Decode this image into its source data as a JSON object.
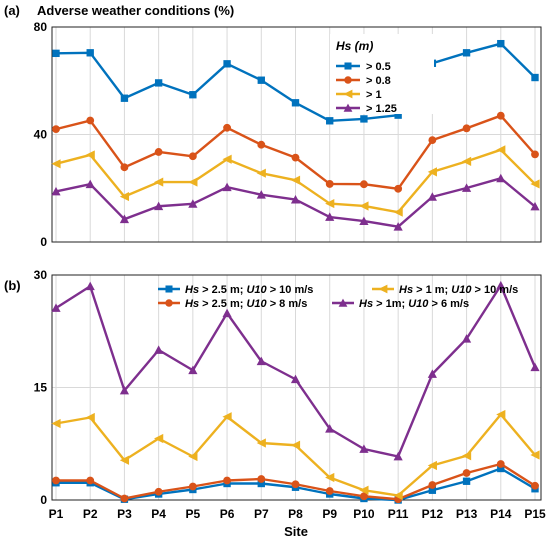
{
  "chart_data": [
    {
      "type": "line",
      "panel_label": "(a)",
      "title": "Adverse weather conditions (%)",
      "x": [
        "P1",
        "P2",
        "P3",
        "P4",
        "P5",
        "P6",
        "P7",
        "P8",
        "P9",
        "P10",
        "P11",
        "P12",
        "P13",
        "P14",
        "P15"
      ],
      "ylim": [
        0,
        80
      ],
      "yticks": [
        "0",
        "40",
        "80"
      ],
      "grid": true,
      "legend_title": "Hs (m)",
      "legend_position": "top-right",
      "series": [
        {
          "name": "> 0.5",
          "color": "#0072BD",
          "marker": "square",
          "values": [
            70.2,
            70.4,
            53.5,
            59.2,
            54.8,
            66.3,
            60.2,
            51.8,
            45.1,
            45.8,
            47.2,
            66.5,
            70.4,
            73.8,
            61.2
          ]
        },
        {
          "name": "> 0.8",
          "color": "#D95319",
          "marker": "circle",
          "values": [
            42.0,
            45.2,
            27.8,
            33.5,
            31.9,
            42.5,
            36.2,
            31.4,
            21.6,
            21.5,
            19.8,
            37.9,
            42.3,
            47.0,
            32.6
          ]
        },
        {
          "name": "> 1",
          "color": "#EDB120",
          "marker": "triangle-left",
          "values": [
            29.1,
            32.4,
            16.9,
            22.3,
            22.3,
            30.8,
            25.6,
            23.0,
            14.3,
            13.4,
            11.1,
            26.1,
            30.0,
            34.3,
            21.6
          ]
        },
        {
          "name": "> 1.25",
          "color": "#7E2F8E",
          "marker": "triangle-up",
          "values": [
            18.8,
            21.5,
            8.5,
            13.3,
            14.2,
            20.4,
            17.6,
            15.8,
            9.3,
            7.8,
            5.7,
            16.8,
            20.1,
            23.7,
            13.2
          ]
        }
      ]
    },
    {
      "type": "line",
      "panel_label": "(b)",
      "xlabel": "Site",
      "x": [
        "P1",
        "P2",
        "P3",
        "P4",
        "P5",
        "P6",
        "P7",
        "P8",
        "P9",
        "P10",
        "P11",
        "P12",
        "P13",
        "P14",
        "P15"
      ],
      "ylim": [
        0,
        30
      ],
      "yticks": [
        "0",
        "15",
        "30"
      ],
      "grid": true,
      "legend_position": "top",
      "series": [
        {
          "name": "Hs > 2.5 m; U10 > 10 m/s",
          "name_parts": {
            "a": "Hs",
            "b": " > 2.5 m; ",
            "c": "U10",
            "d": " > 10 m/s"
          },
          "color": "#0072BD",
          "marker": "square",
          "values": [
            2.3,
            2.3,
            0.1,
            0.8,
            1.4,
            2.2,
            2.2,
            1.7,
            0.8,
            0.2,
            0.0,
            1.3,
            2.5,
            4.2,
            1.5
          ]
        },
        {
          "name": "Hs > 2.5 m; U10 > 8 m/s",
          "name_parts": {
            "a": "Hs",
            "b": " > 2.5 m; ",
            "c": "U10",
            "d": " > 8 m/s"
          },
          "color": "#D95319",
          "marker": "circle",
          "values": [
            2.6,
            2.6,
            0.2,
            1.1,
            1.8,
            2.6,
            2.8,
            2.1,
            1.2,
            0.5,
            0.1,
            2.0,
            3.6,
            4.8,
            1.9
          ]
        },
        {
          "name": "Hs > 1 m; U10 > 10 m/s",
          "name_parts": {
            "a": "Hs",
            "b": " > 1 m; ",
            "c": "U10",
            "d": " > 10 m/s"
          },
          "color": "#EDB120",
          "marker": "triangle-left",
          "values": [
            10.2,
            11.0,
            5.3,
            8.2,
            5.8,
            11.1,
            7.6,
            7.3,
            3.0,
            1.3,
            0.6,
            4.6,
            5.9,
            11.4,
            6.0
          ]
        },
        {
          "name": "Hs > 1m; U10 > 6 m/s",
          "name_parts": {
            "a": "Hs",
            "b": " > 1m; ",
            "c": "U10",
            "d": " > 6 m/s"
          },
          "color": "#7E2F8E",
          "marker": "triangle-up",
          "values": [
            25.6,
            28.5,
            14.6,
            20.0,
            17.3,
            24.9,
            18.5,
            16.1,
            9.5,
            6.8,
            5.8,
            16.8,
            21.5,
            28.6,
            17.7
          ]
        }
      ]
    }
  ]
}
